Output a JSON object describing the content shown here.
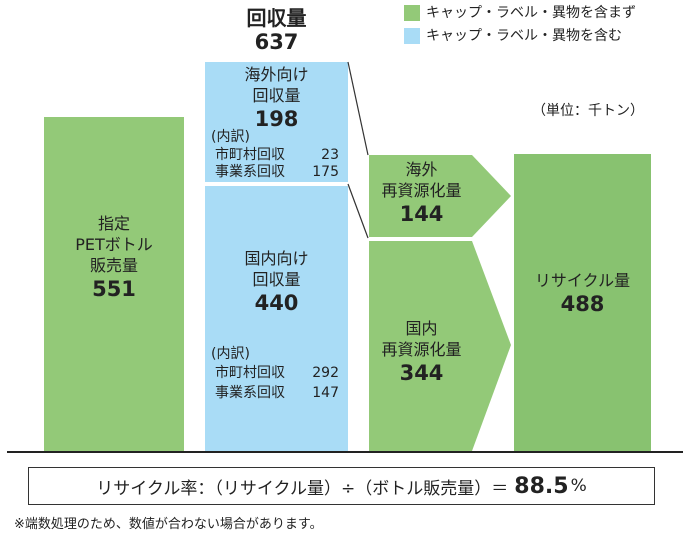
{
  "legend": {
    "green_label": "キャップ・ラベル・異物を含まず",
    "blue_label": "キャップ・ラベル・異物を含む"
  },
  "colors": {
    "green": "#93c978",
    "green_dark": "#88c270",
    "blue": "#a9dcf6",
    "baseline": "#222222"
  },
  "unit": "（単位：千トン）",
  "collection_total": {
    "label": "回収量",
    "value": "637"
  },
  "sales": {
    "line1": "指定",
    "line2": "PETボトル",
    "line3": "販売量",
    "value": "551"
  },
  "overseas_collection": {
    "line1": "海外向け",
    "line2": "回収量",
    "value": "198",
    "breakdown_label": "(内訳)",
    "municipal_label": "市町村回収",
    "municipal_value": "23",
    "business_label": "事業系回収",
    "business_value": "175"
  },
  "domestic_collection": {
    "line1": "国内向け",
    "line2": "回収量",
    "value": "440",
    "breakdown_label": "(内訳)",
    "municipal_label": "市町村回収",
    "municipal_value": "292",
    "business_label": "事業系回収",
    "business_value": "147"
  },
  "overseas_recycling": {
    "line1": "海外",
    "line2": "再資源化量",
    "value": "144"
  },
  "domestic_recycling": {
    "line1": "国内",
    "line2": "再資源化量",
    "value": "344"
  },
  "recycling_total": {
    "label": "リサイクル量",
    "value": "488"
  },
  "formula": {
    "text": "リサイクル率：（リサイクル量）÷（ボトル販売量）＝",
    "value": "88.5",
    "percent": "%"
  },
  "footnote": "※端数処理のため、数値が合わない場合があります。"
}
